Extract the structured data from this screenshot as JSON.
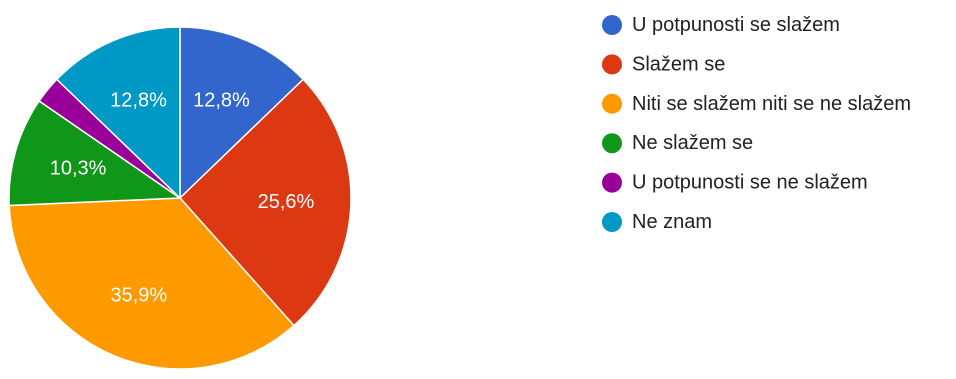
{
  "chart_data": {
    "type": "pie",
    "title": "",
    "start_angle_deg": 90,
    "direction": "counterclockwise",
    "legend_position": "right",
    "slices": [
      {
        "label": "U potpunosti se slažem",
        "value": 12.8,
        "display": "12,8%",
        "color": "#3366CC"
      },
      {
        "label": "Slažem se",
        "value": 25.6,
        "display": "25,6%",
        "color": "#DC3912"
      },
      {
        "label": "Niti se slažem niti se ne slažem",
        "value": 35.9,
        "display": "35,9%",
        "color": "#FF9900"
      },
      {
        "label": "Ne slažem se",
        "value": 10.3,
        "display": "10,3%",
        "color": "#109618"
      },
      {
        "label": "U potpunosti se ne slažem",
        "value": 2.6,
        "display": "",
        "color": "#990099"
      },
      {
        "label": "Ne znam",
        "value": 12.8,
        "display": "12,8%",
        "color": "#0099C6"
      }
    ]
  }
}
